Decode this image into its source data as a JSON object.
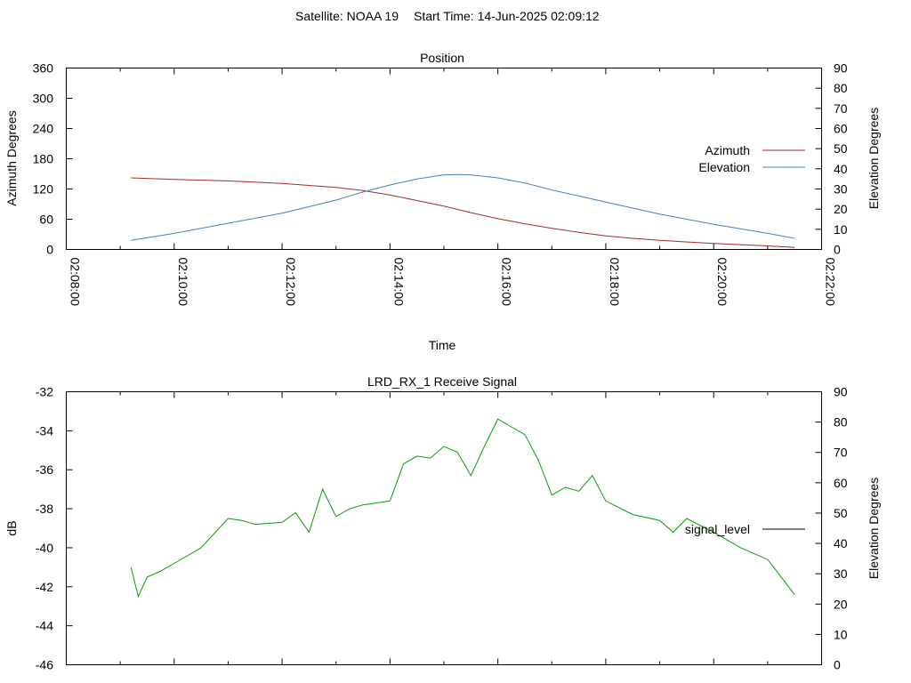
{
  "header": {
    "satellite_text": "Satellite: NOAA 19",
    "start_text": "Start Time: 14-Jun-2025 02:09:12"
  },
  "chart_data": [
    {
      "type": "line",
      "title": "Position",
      "xlabel": "Time",
      "ylabel": "Azimuth Degrees",
      "y2label": "Elevation Degrees",
      "x_range": [
        "02:08:00",
        "02:22:00"
      ],
      "x_ticks": [
        "02:08:00",
        "02:10:00",
        "02:12:00",
        "02:14:00",
        "02:16:00",
        "02:18:00",
        "02:20:00",
        "02:22:00"
      ],
      "ylim": [
        0,
        360
      ],
      "y_ticks": [
        0,
        60,
        120,
        180,
        240,
        300,
        360
      ],
      "y2lim": [
        0,
        90
      ],
      "y2_ticks": [
        0,
        10,
        20,
        30,
        40,
        50,
        60,
        70,
        80,
        90
      ],
      "legend": "right",
      "series": [
        {
          "name": "Azimuth",
          "axis": "y",
          "color": "#a52a2a",
          "x": [
            "02:09:12",
            "02:10:00",
            "02:11:00",
            "02:12:00",
            "02:13:00",
            "02:13:30",
            "02:14:00",
            "02:14:30",
            "02:15:00",
            "02:15:30",
            "02:16:00",
            "02:16:30",
            "02:17:00",
            "02:17:30",
            "02:18:00",
            "02:18:30",
            "02:19:00",
            "02:20:00",
            "02:21:00",
            "02:21:30"
          ],
          "values": [
            142,
            139,
            136,
            131,
            123,
            117,
            108,
            97,
            86,
            73,
            61,
            51,
            42,
            34,
            27,
            22,
            18,
            12,
            7,
            4
          ]
        },
        {
          "name": "Elevation",
          "axis": "y2",
          "color": "#4682b4",
          "x": [
            "02:09:12",
            "02:10:00",
            "02:11:00",
            "02:12:00",
            "02:13:00",
            "02:13:30",
            "02:14:00",
            "02:14:30",
            "02:15:00",
            "02:15:15",
            "02:15:30",
            "02:16:00",
            "02:16:30",
            "02:17:00",
            "02:17:30",
            "02:18:00",
            "02:19:00",
            "02:20:00",
            "02:21:00",
            "02:21:30"
          ],
          "values": [
            4.5,
            8,
            13,
            18,
            24.5,
            28.5,
            32,
            35,
            37,
            37.2,
            37,
            35.5,
            33,
            29.5,
            26.5,
            23.5,
            17.5,
            12.5,
            8,
            5.5
          ]
        }
      ]
    },
    {
      "type": "line",
      "title": "LRD_RX_1 Receive Signal",
      "ylabel": "dB",
      "y2label": "Elevation Degrees",
      "x_range": [
        "02:08:00",
        "02:22:00"
      ],
      "ylim": [
        -46,
        -32
      ],
      "y_ticks": [
        -46,
        -44,
        -42,
        -40,
        -38,
        -36,
        -34,
        -32
      ],
      "y2lim": [
        0,
        90
      ],
      "y2_ticks": [
        0,
        10,
        20,
        30,
        40,
        50,
        60,
        70,
        80,
        90
      ],
      "legend": "right",
      "series": [
        {
          "name": "signal_level",
          "legend_color": "#000000",
          "color": "#00a000",
          "x": [
            "02:09:12",
            "02:09:20",
            "02:09:30",
            "02:09:45",
            "02:10:00",
            "02:10:30",
            "02:11:00",
            "02:11:15",
            "02:11:30",
            "02:12:00",
            "02:12:15",
            "02:12:30",
            "02:12:45",
            "02:13:00",
            "02:13:15",
            "02:13:30",
            "02:14:00",
            "02:14:15",
            "02:14:30",
            "02:14:45",
            "02:15:00",
            "02:15:15",
            "02:15:30",
            "02:15:45",
            "02:16:00",
            "02:16:15",
            "02:16:30",
            "02:16:45",
            "02:17:00",
            "02:17:15",
            "02:17:30",
            "02:17:45",
            "02:18:00",
            "02:18:30",
            "02:19:00",
            "02:19:15",
            "02:19:30",
            "02:20:00",
            "02:20:30",
            "02:21:00",
            "02:21:30"
          ],
          "values": [
            -41,
            -42.5,
            -41.5,
            -41.2,
            -40.8,
            -40,
            -38.5,
            -38.6,
            -38.8,
            -38.7,
            -38.2,
            -39.2,
            -37,
            -38.4,
            -38,
            -37.8,
            -37.6,
            -35.7,
            -35.3,
            -35.4,
            -34.8,
            -35.1,
            -36.3,
            -34.8,
            -33.4,
            -33.8,
            -34.2,
            -35.5,
            -37.3,
            -36.9,
            -37.1,
            -36.3,
            -37.6,
            -38.3,
            -38.6,
            -39.2,
            -38.5,
            -39.2,
            -40,
            -40.6,
            -42.4
          ]
        }
      ]
    }
  ]
}
